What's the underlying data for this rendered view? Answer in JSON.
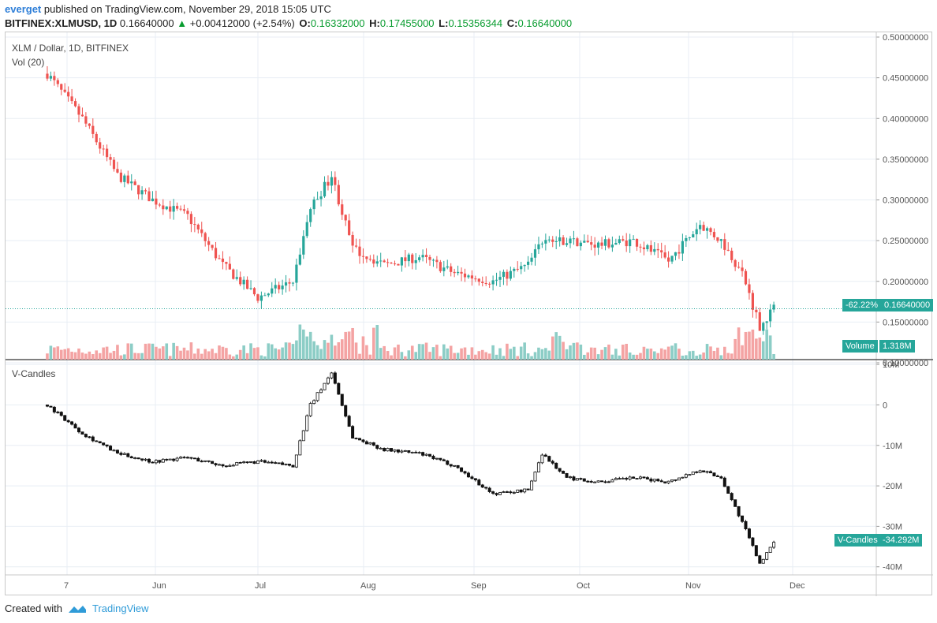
{
  "header": {
    "user": "everget",
    "published": "published on TradingView.com, November 29, 2018 15:05 UTC",
    "symbol": "BITFINEX:XLMUSD, 1D",
    "last": "0.16640000",
    "change": "+0.00412000 (+2.54%)",
    "o_label": "O:",
    "o": "0.16332000",
    "h_label": "H:",
    "h": "0.17455000",
    "l_label": "L:",
    "l": "0.15356344",
    "c_label": "C:",
    "c": "0.16640000"
  },
  "legend": {
    "title": "XLM / Dollar, 1D, BITFINEX",
    "vol": "Vol (20)",
    "vcandles": "V-Candles"
  },
  "price_axis": [
    "0.50000000",
    "0.45000000",
    "0.40000000",
    "0.35000000",
    "0.30000000",
    "0.25000000",
    "0.20000000",
    "0.15000000",
    "0.10000000"
  ],
  "v_axis": [
    "10M",
    "0",
    "-10M",
    "-20M",
    "-30M",
    "-40M"
  ],
  "time_axis": [
    "7",
    "Jun",
    "Jul",
    "Aug",
    "Sep",
    "Oct",
    "Nov",
    "Dec"
  ],
  "price_tag": {
    "pct": "-62.22%",
    "value": "0.16640000"
  },
  "volume_tag": {
    "label": "Volume",
    "value": "1.318M"
  },
  "vcandles_tag": {
    "label": "V-Candles",
    "value": "-34.292M"
  },
  "footer": {
    "created": "Created with",
    "brand": "TradingView"
  },
  "colors": {
    "up": "#26a69a",
    "down": "#ef5350",
    "volUp": "#8ccdc6",
    "volDown": "#f4a3a3",
    "grid": "#e8eef4"
  },
  "chart_data": [
    {
      "type": "candlestick",
      "title": "XLM / Dollar, 1D, BITFINEX",
      "ylim": [
        0.1,
        0.5
      ],
      "x": [
        "2018-05-06",
        "2018-05-16",
        "2018-05-26",
        "2018-06-05",
        "2018-06-15",
        "2018-06-25",
        "2018-07-05",
        "2018-07-15",
        "2018-07-20",
        "2018-07-26",
        "2018-08-01",
        "2018-08-10",
        "2018-08-20",
        "2018-08-30",
        "2018-09-10",
        "2018-09-20",
        "2018-09-24",
        "2018-10-01",
        "2018-10-10",
        "2018-10-20",
        "2018-10-30",
        "2018-11-08",
        "2018-11-14",
        "2018-11-20",
        "2018-11-25",
        "2018-11-29"
      ],
      "close": [
        0.455,
        0.4,
        0.33,
        0.3,
        0.28,
        0.22,
        0.18,
        0.2,
        0.29,
        0.33,
        0.24,
        0.22,
        0.23,
        0.21,
        0.2,
        0.22,
        0.25,
        0.25,
        0.245,
        0.25,
        0.225,
        0.27,
        0.25,
        0.21,
        0.145,
        0.1664
      ],
      "volume_label": "Vol (20)"
    },
    {
      "type": "candlestick",
      "title": "V-Candles",
      "ylim": [
        -42,
        11
      ],
      "unit": "M",
      "x": [
        "2018-05-06",
        "2018-05-16",
        "2018-05-26",
        "2018-06-05",
        "2018-06-15",
        "2018-06-25",
        "2018-07-05",
        "2018-07-15",
        "2018-07-20",
        "2018-07-26",
        "2018-08-01",
        "2018-08-10",
        "2018-08-20",
        "2018-08-30",
        "2018-09-10",
        "2018-09-20",
        "2018-09-24",
        "2018-10-01",
        "2018-10-10",
        "2018-10-20",
        "2018-10-30",
        "2018-11-08",
        "2018-11-14",
        "2018-11-20",
        "2018-11-25",
        "2018-11-29"
      ],
      "close": [
        0,
        -7,
        -12,
        -14,
        -13,
        -15,
        -14,
        -15,
        0,
        8,
        -8,
        -11,
        -12,
        -15,
        -22,
        -21,
        -12,
        -18,
        -19,
        -18,
        -19,
        -16,
        -18,
        -29,
        -39,
        -34.292
      ]
    }
  ]
}
